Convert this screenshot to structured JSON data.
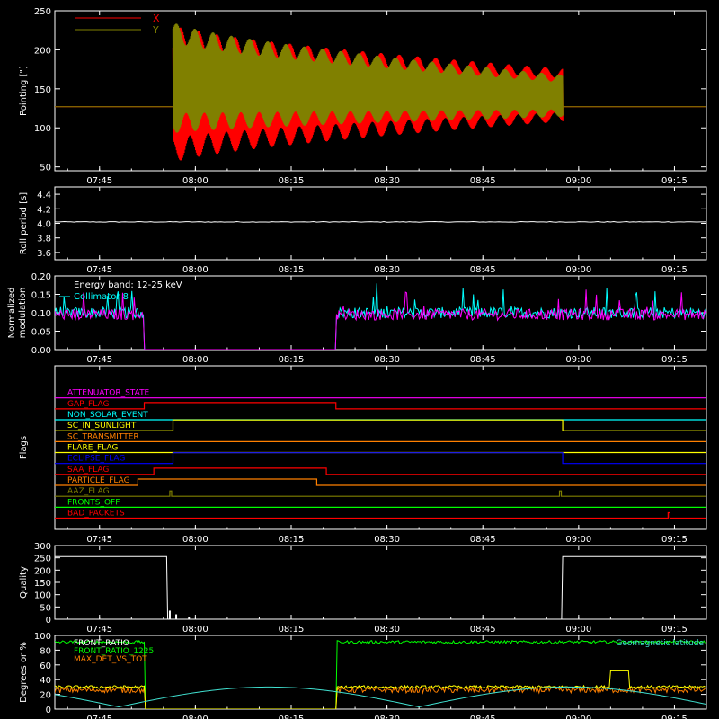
{
  "colors": {
    "bg": "#000000",
    "axis": "#ffffff",
    "red": "#ff0000",
    "olive": "#808000",
    "white": "#ffffff",
    "cyan": "#00ffff",
    "magenta": "#ff00ff",
    "green": "#00ff00",
    "yellow": "#ffff00",
    "orange": "#ff8000",
    "blue": "#0000ff",
    "sky": "#40e0d0"
  },
  "time_ticks": [
    "07:45",
    "08:00",
    "08:15",
    "08:30",
    "08:45",
    "09:00",
    "09:15"
  ],
  "chart_data": [
    {
      "type": "line",
      "name": "pointing",
      "ylabel": "Pointing [\"]",
      "ylim": [
        45,
        250
      ],
      "yticks": [
        "50",
        "100",
        "150",
        "200",
        "250"
      ],
      "legend": [
        "X",
        "Y"
      ],
      "series": [
        {
          "name": "X",
          "color": "red",
          "baseline": 127,
          "envelope_start": {
            "t": "07:56:30",
            "upper": 232,
            "lower": 55
          },
          "envelope_end": {
            "t": "08:57:30",
            "upper": 176,
            "lower": 108
          }
        },
        {
          "name": "Y",
          "color": "olive",
          "baseline": 127,
          "envelope_start": {
            "t": "07:56:30",
            "upper": 236,
            "lower": 93
          },
          "envelope_end": {
            "t": "08:57:30",
            "upper": 168,
            "lower": 114
          }
        }
      ]
    },
    {
      "type": "line",
      "name": "roll_period",
      "ylabel": "Roll period [s]",
      "ylim": [
        3.5,
        4.5
      ],
      "yticks": [
        "3.6",
        "3.8",
        "4.0",
        "4.2",
        "4.4"
      ],
      "series": [
        {
          "name": "",
          "color": "white",
          "value": 4.02
        }
      ]
    },
    {
      "type": "line",
      "name": "modulation",
      "ylabel": "Normalized modulation",
      "ylim": [
        0,
        0.2
      ],
      "yticks": [
        "0.00",
        "0.05",
        "0.10",
        "0.15",
        "0.20"
      ],
      "annotation": "Energy band: 12-25 keV",
      "legend": [
        "Collimator 8"
      ],
      "gap": {
        "start": "07:52",
        "end": "08:22"
      },
      "series": [
        {
          "name": "Collimator 8",
          "color": "cyan",
          "level": 0.1
        },
        {
          "name": "",
          "color": "magenta",
          "level": 0.095
        }
      ]
    },
    {
      "type": "step",
      "name": "flags",
      "ylabel": "Flags",
      "flags": [
        {
          "label": "ATTENUATOR_STATE",
          "color": "magenta",
          "highs": []
        },
        {
          "label": "GAP_FLAG",
          "color": "red",
          "highs": [
            [
              "07:52",
              "08:22"
            ]
          ]
        },
        {
          "label": "NON_SOLAR_EVENT",
          "color": "cyan",
          "highs": []
        },
        {
          "label": "SC_IN_SUNLIGHT",
          "color": "yellow",
          "highs": [
            [
              "07:56:30",
              "08:57:30"
            ]
          ],
          "inverted": true
        },
        {
          "label": "SC_TRANSMITTER",
          "color": "orange",
          "highs": []
        },
        {
          "label": "FLARE_FLAG",
          "color": "yellow",
          "highs": []
        },
        {
          "label": "ECLIPSE_FLAG",
          "color": "blue",
          "highs": [
            [
              "07:56:30",
              "08:57:30"
            ]
          ],
          "inverted": true
        },
        {
          "label": "SAA_FLAG",
          "color": "red",
          "highs": [
            [
              "07:53:30",
              "08:20:30"
            ]
          ]
        },
        {
          "label": "PARTICLE_FLAG",
          "color": "orange",
          "highs": [
            [
              "07:51",
              "08:19"
            ]
          ]
        },
        {
          "label": "AAZ_FLAG",
          "color": "olive",
          "spikes": [
            "07:56",
            "08:57"
          ]
        },
        {
          "label": "FRONTS_OFF",
          "color": "green",
          "highs": []
        },
        {
          "label": "BAD_PACKETS",
          "color": "red",
          "spikes": [
            "09:14"
          ]
        }
      ]
    },
    {
      "type": "line",
      "name": "quality",
      "ylabel": "Quality",
      "ylim": [
        0,
        300
      ],
      "yticks": [
        "0",
        "50",
        "100",
        "150",
        "200",
        "250",
        "300"
      ],
      "series": [
        {
          "name": "",
          "color": "white",
          "points": [
            [
              "07:38",
              255
            ],
            [
              "07:55:30",
              255
            ],
            [
              "07:55:40",
              0
            ],
            [
              "08:57:20",
              0
            ],
            [
              "08:57:30",
              255
            ],
            [
              "09:20",
              255
            ]
          ]
        }
      ]
    },
    {
      "type": "line",
      "name": "ratios",
      "ylabel": "Degrees or %",
      "ylim": [
        0,
        100
      ],
      "yticks": [
        "0",
        "20",
        "40",
        "60",
        "80",
        "100"
      ],
      "legend": [
        "FRONT_RATIO",
        "FRONT_RATIO_1225",
        "MAX_DET_VS_TOT"
      ],
      "annotation": "Geomagnetic latitude",
      "series": [
        {
          "name": "FRONT_RATIO",
          "color": "white",
          "level": 26
        },
        {
          "name": "FRONT_RATIO_1225",
          "color": "green",
          "level": 91
        },
        {
          "name": "MAX_DET_VS_TOT",
          "color": "orange",
          "level": 28
        },
        {
          "name": "Geomagnetic latitude",
          "color": "sky"
        }
      ]
    }
  ]
}
